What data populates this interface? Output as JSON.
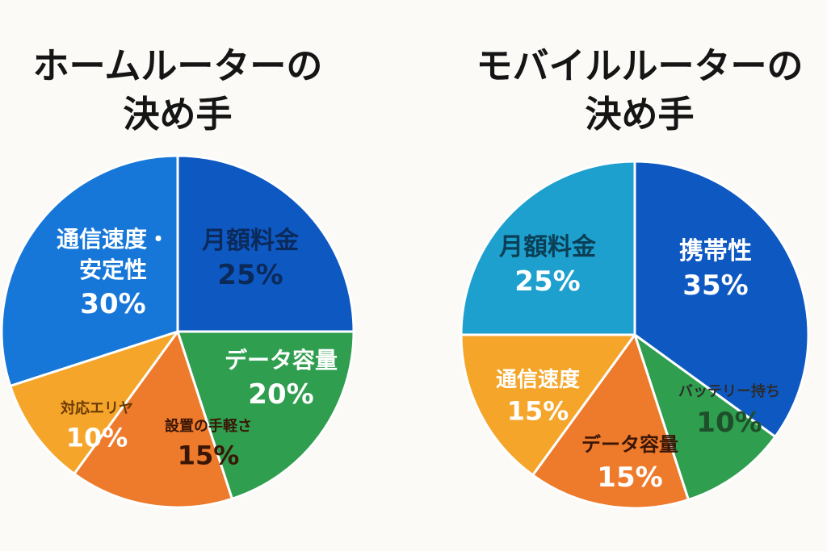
{
  "chart_data": [
    {
      "type": "pie",
      "title_lines": [
        "ホームルーターの",
        "決め手"
      ],
      "slices": [
        {
          "label": "月額料金",
          "value": 25,
          "value_label": "25%",
          "color": "#0e58c2"
        },
        {
          "label": "データ容量",
          "value": 20,
          "value_label": "20%",
          "color": "#2f9e4f"
        },
        {
          "label": "設置の手軽さ",
          "value": 15,
          "value_label": "15%",
          "color": "#ee7a2b"
        },
        {
          "label": "対応エリヤ",
          "value": 10,
          "value_label": "10%",
          "color": "#f5a52a"
        },
        {
          "label": "通信速度・安定性",
          "value": 30,
          "value_label": "30%",
          "color": "#1677d9"
        }
      ]
    },
    {
      "type": "pie",
      "title_lines": [
        "モバイルルーターの",
        "決め手"
      ],
      "slices": [
        {
          "label": "携帯性",
          "value": 35,
          "value_label": "35%",
          "color": "#0e58c2"
        },
        {
          "label": "バッテリー持ち",
          "value": 10,
          "value_label": "10%",
          "color": "#2f9e4f"
        },
        {
          "label": "データ容量",
          "value": 15,
          "value_label": "15%",
          "color": "#ee7a2b"
        },
        {
          "label": "通信速度",
          "value": 15,
          "value_label": "15%",
          "color": "#f5a52a"
        },
        {
          "label": "月額料金",
          "value": 25,
          "value_label": "25%",
          "color": "#1ea0cf"
        }
      ]
    }
  ]
}
